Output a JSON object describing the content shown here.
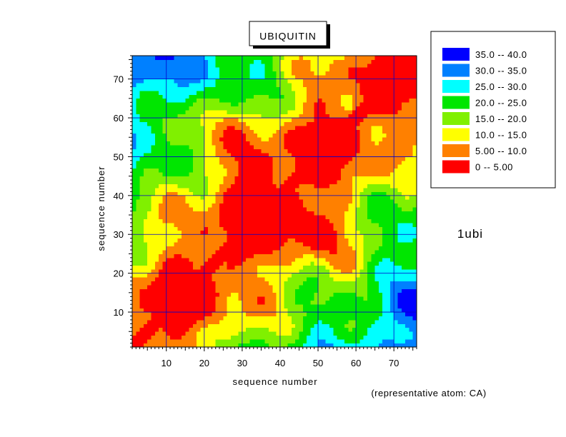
{
  "chart_data": {
    "type": "heatmap",
    "title": "UBIQUITIN",
    "xlabel": "sequence number",
    "ylabel": "sequence number",
    "protein_id": "1ubi",
    "note": "(representative atom: CA)",
    "xlim": [
      1,
      76
    ],
    "ylim": [
      1,
      76
    ],
    "x_ticks": [
      10,
      20,
      30,
      40,
      50,
      60,
      70
    ],
    "y_ticks": [
      10,
      20,
      30,
      40,
      50,
      60,
      70
    ],
    "grid": true,
    "legend_position": "top-right",
    "legend": [
      {
        "label": "35.0  --  40.0",
        "min": 35,
        "max": 40,
        "color": "#0000ff"
      },
      {
        "label": "30.0  --  35.0",
        "min": 30,
        "max": 35,
        "color": "#0080ff"
      },
      {
        "label": "25.0  --  30.0",
        "min": 25,
        "max": 30,
        "color": "#00ffff"
      },
      {
        "label": "20.0  --  25.0",
        "min": 20,
        "max": 25,
        "color": "#00e600"
      },
      {
        "label": "15.0  --  20.0",
        "min": 15,
        "max": 20,
        "color": "#80f000"
      },
      {
        "label": "10.0  --  15.0",
        "min": 10,
        "max": 15,
        "color": "#ffff00"
      },
      {
        "label": "5.00  --  10.0",
        "min": 5,
        "max": 10,
        "color": "#ff8000"
      },
      {
        "label": "0  --  5.00",
        "min": 0,
        "max": 5,
        "color": "#ff0000"
      }
    ]
  }
}
